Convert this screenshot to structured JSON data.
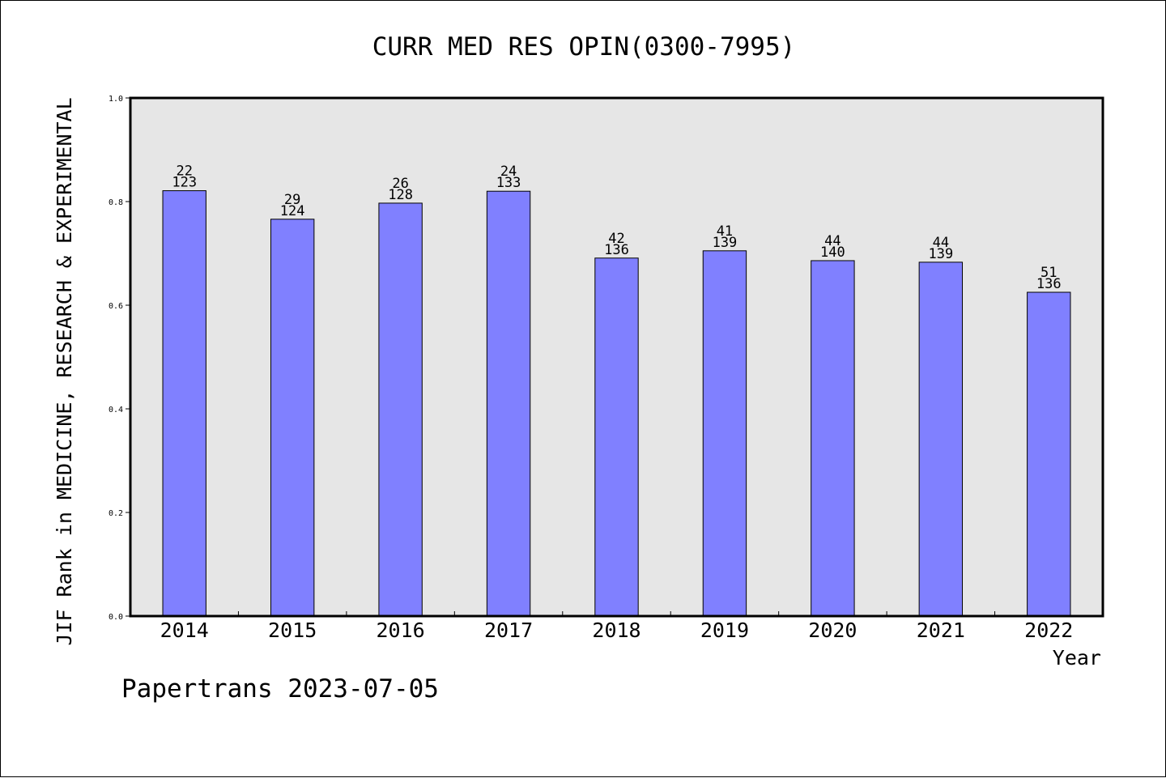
{
  "chart_data": {
    "type": "bar",
    "title": "CURR MED RES OPIN(0300-7995)",
    "xlabel": "Year",
    "ylabel": "JIF Rank in MEDICINE, RESEARCH & EXPERIMENTAL",
    "ylim": [
      0,
      1.0
    ],
    "yticks": [
      "0.0",
      "0.2",
      "0.4",
      "0.6",
      "0.8",
      "1.0"
    ],
    "grid": false,
    "categories": [
      "2014",
      "2015",
      "2016",
      "2017",
      "2018",
      "2019",
      "2020",
      "2021",
      "2022"
    ],
    "values": [
      0.821,
      0.766,
      0.797,
      0.82,
      0.691,
      0.705,
      0.686,
      0.683,
      0.625
    ],
    "rank": [
      "22",
      "29",
      "26",
      "24",
      "42",
      "41",
      "44",
      "44",
      "51"
    ],
    "total": [
      "123",
      "124",
      "128",
      "133",
      "136",
      "139",
      "140",
      "139",
      "136"
    ],
    "colors": {
      "bar": "#8080ff",
      "plot_background": "#e6e6e6"
    }
  },
  "footer": "Papertrans 2023-07-05"
}
